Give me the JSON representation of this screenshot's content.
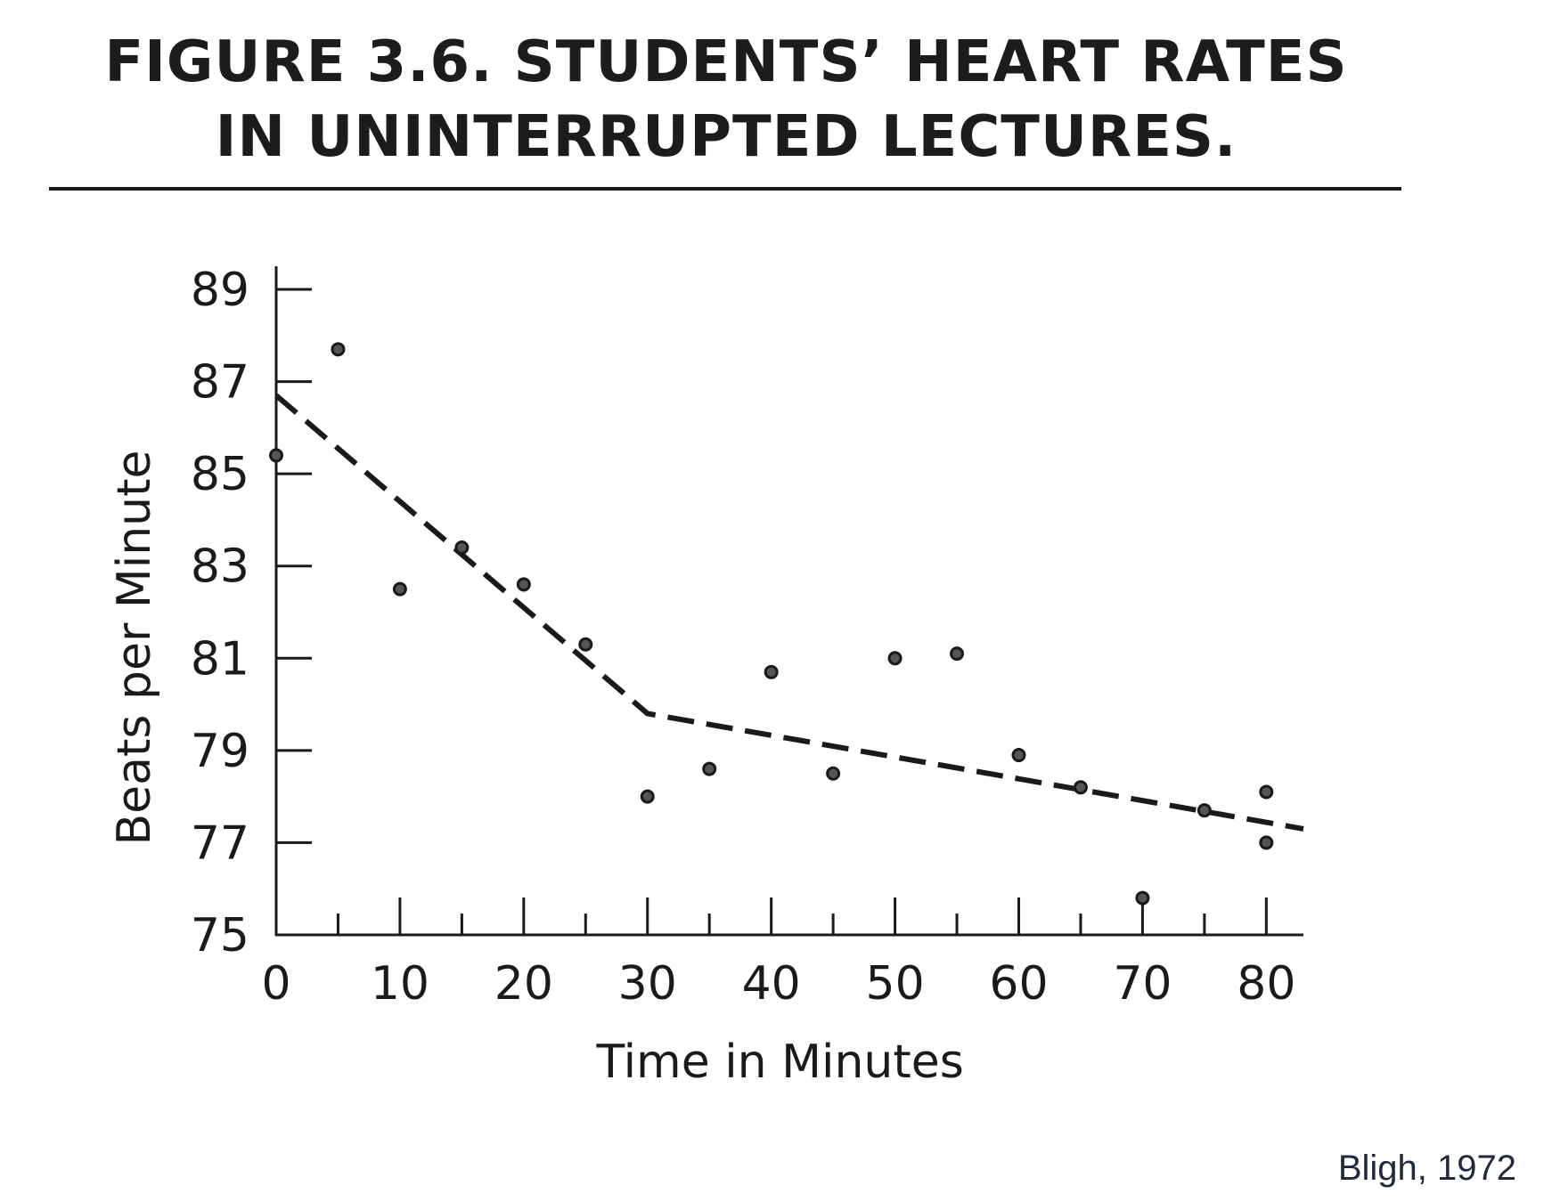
{
  "figure": {
    "title_line1": "FIGURE 3.6.  STUDENTS’ HEART RATES",
    "title_line2": "IN UNINTERRUPTED LECTURES.",
    "source": "Bligh, 1972"
  },
  "chart_data": {
    "type": "scatter",
    "xlabel": "Time in Minutes",
    "ylabel": "Beats per Minute",
    "xlim": [
      0,
      83
    ],
    "ylim": [
      75,
      89.5
    ],
    "x_ticks": [
      0,
      10,
      20,
      30,
      40,
      50,
      60,
      70,
      80
    ],
    "x_minor_ticks": [
      5,
      15,
      25,
      35,
      45,
      55,
      65,
      75
    ],
    "y_ticks": [
      75,
      77,
      79,
      81,
      83,
      85,
      87,
      89
    ],
    "grid": false,
    "points": [
      {
        "x": 0,
        "y": 85.4
      },
      {
        "x": 5,
        "y": 87.7
      },
      {
        "x": 10,
        "y": 82.5
      },
      {
        "x": 15,
        "y": 83.4
      },
      {
        "x": 20,
        "y": 82.6
      },
      {
        "x": 25,
        "y": 81.3
      },
      {
        "x": 30,
        "y": 78.0
      },
      {
        "x": 35,
        "y": 78.6
      },
      {
        "x": 40,
        "y": 80.7
      },
      {
        "x": 45,
        "y": 78.5
      },
      {
        "x": 50,
        "y": 81.0
      },
      {
        "x": 55,
        "y": 81.1
      },
      {
        "x": 60,
        "y": 78.9
      },
      {
        "x": 65,
        "y": 78.2
      },
      {
        "x": 70,
        "y": 75.8
      },
      {
        "x": 75,
        "y": 77.7
      },
      {
        "x": 80,
        "y": 78.1
      },
      {
        "x": 80,
        "y": 77.0
      }
    ],
    "trend_line": {
      "style": "dashed",
      "points": [
        {
          "x": 0,
          "y": 86.7
        },
        {
          "x": 30,
          "y": 79.8
        },
        {
          "x": 83,
          "y": 77.3
        }
      ]
    }
  },
  "colors": {
    "ink": "#1a1a1a",
    "source_text": "#1f2a3a"
  }
}
